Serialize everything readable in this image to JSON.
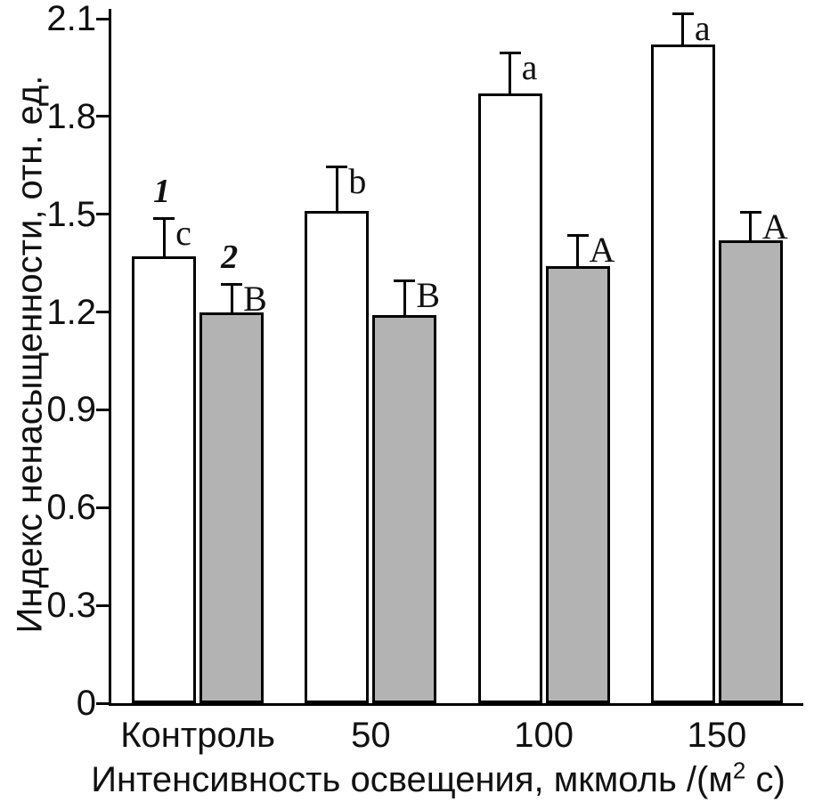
{
  "chart_data": {
    "type": "bar",
    "title": "",
    "ylabel": "Индекс ненасыщенности, отн. ед.",
    "xlabel_pre": "Интенсивность освещения, мкмоль /(м",
    "xlabel_sup": "2",
    "xlabel_post": " с)",
    "ylim": [
      0,
      2.13
    ],
    "yticks": [
      "0",
      "0.3",
      "0.6",
      "0.9",
      "1.2",
      "1.5",
      "1.8",
      "2.1"
    ],
    "categories": [
      "Контроль",
      "50",
      "100",
      "150"
    ],
    "grid": false,
    "legend_position": "series numerals above first bar pair",
    "series": [
      {
        "name": "1",
        "fill": "#ffffff",
        "values": [
          1.37,
          1.51,
          1.87,
          2.02
        ],
        "errors_plus": [
          0.12,
          0.14,
          0.13,
          0.1
        ],
        "letters": [
          "c",
          "b",
          "a",
          "a"
        ]
      },
      {
        "name": "2",
        "fill": "#b3b3b3",
        "values": [
          1.2,
          1.19,
          1.34,
          1.42
        ],
        "errors_plus": [
          0.09,
          0.11,
          0.1,
          0.09
        ],
        "letters": [
          "B",
          "B",
          "A",
          "A"
        ]
      }
    ]
  }
}
